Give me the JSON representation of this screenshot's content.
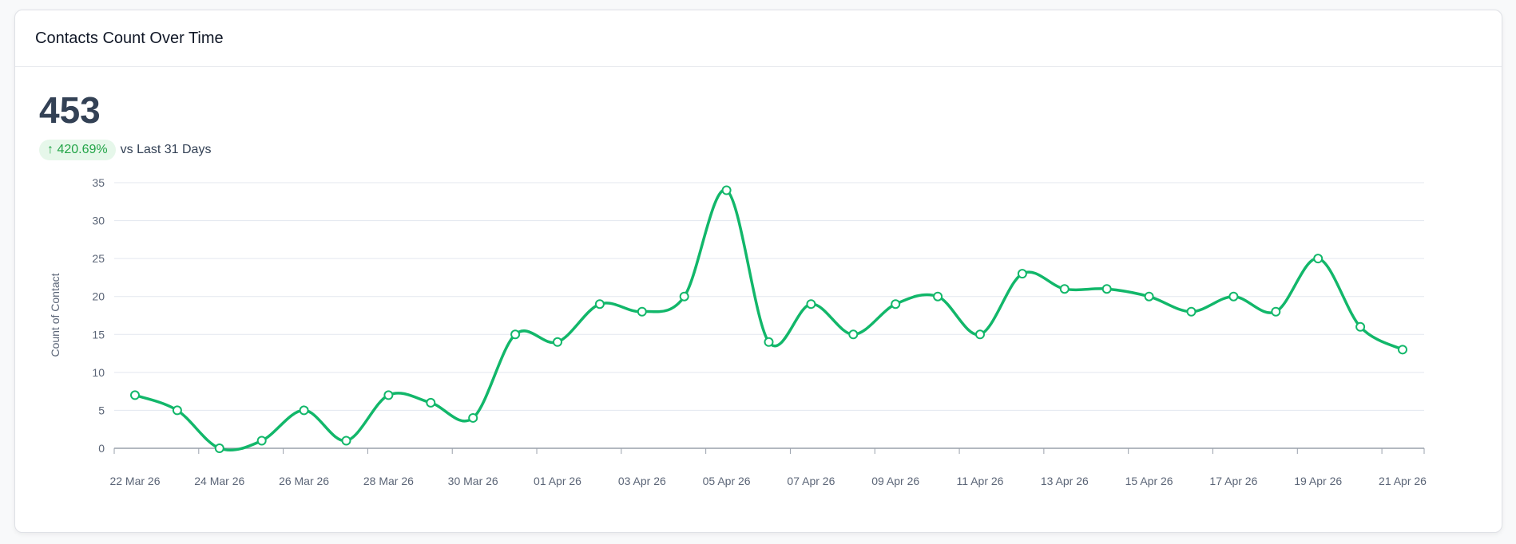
{
  "card": {
    "title": "Contacts Count Over Time",
    "total": "453",
    "change": {
      "icon": "arrow-up-icon",
      "arrow": "↑",
      "value": "420.69%",
      "label": "vs Last 31 Days"
    }
  },
  "chart_data": {
    "type": "line",
    "ylabel": "Count of Contact",
    "xlabel": "",
    "ylim": [
      0,
      35
    ],
    "yticks": [
      0,
      5,
      10,
      15,
      20,
      25,
      30,
      35
    ],
    "grid": true,
    "x": [
      "22 Mar 26",
      "23 Mar 26",
      "24 Mar 26",
      "25 Mar 26",
      "26 Mar 26",
      "27 Mar 26",
      "28 Mar 26",
      "29 Mar 26",
      "30 Mar 26",
      "31 Mar 26",
      "01 Apr 26",
      "02 Apr 26",
      "03 Apr 26",
      "04 Apr 26",
      "05 Apr 26",
      "06 Apr 26",
      "07 Apr 26",
      "08 Apr 26",
      "09 Apr 26",
      "10 Apr 26",
      "11 Apr 26",
      "12 Apr 26",
      "13 Apr 26",
      "14 Apr 26",
      "15 Apr 26",
      "16 Apr 26",
      "17 Apr 26",
      "18 Apr 26",
      "19 Apr 26",
      "20 Apr 26",
      "21 Apr 26"
    ],
    "xticklabels": [
      "22 Mar 26",
      "24 Mar 26",
      "26 Mar 26",
      "28 Mar 26",
      "30 Mar 26",
      "01 Apr 26",
      "03 Apr 26",
      "05 Apr 26",
      "07 Apr 26",
      "09 Apr 26",
      "11 Apr 26",
      "13 Apr 26",
      "15 Apr 26",
      "17 Apr 26",
      "19 Apr 26",
      "21 Apr 26"
    ],
    "series": [
      {
        "values": [
          7,
          5,
          0,
          1,
          5,
          1,
          7,
          6,
          4,
          15,
          14,
          19,
          18,
          20,
          34,
          14,
          19,
          15,
          19,
          20,
          15,
          23,
          21,
          21,
          20,
          18,
          20,
          18,
          25,
          16,
          13
        ],
        "color": "#12b76a"
      }
    ]
  }
}
